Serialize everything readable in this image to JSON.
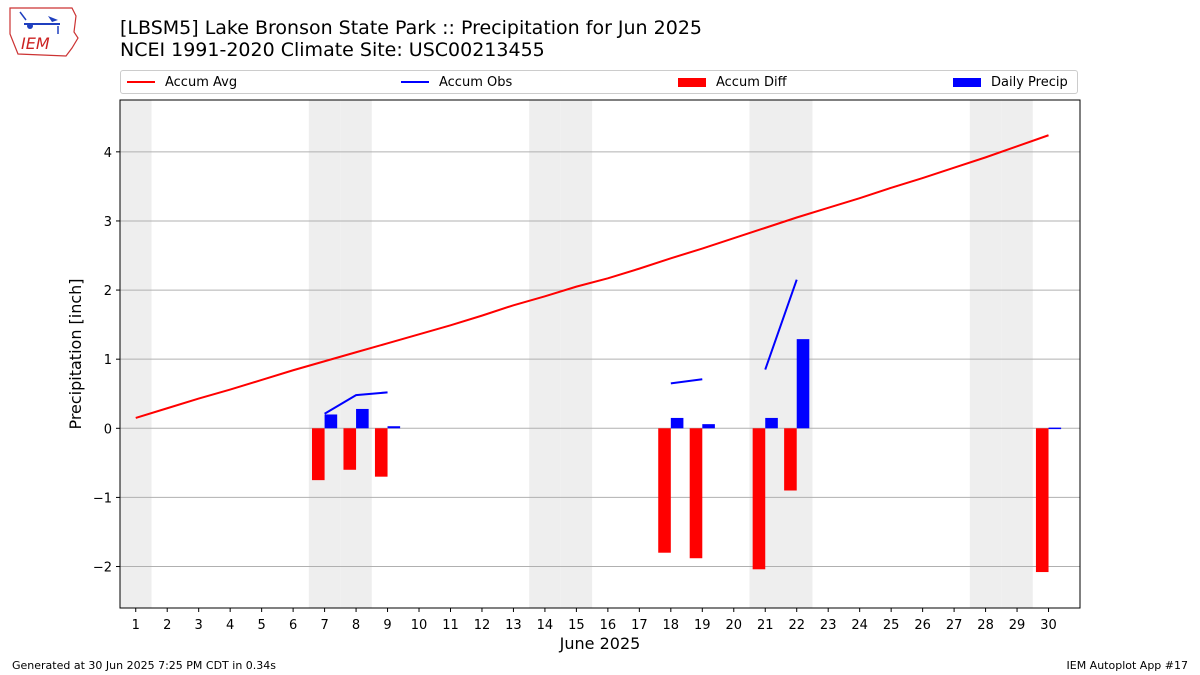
{
  "header": {
    "title_line1": "[LBSM5] Lake Bronson State Park :: Precipitation for Jun 2025",
    "title_line2": "NCEI 1991-2020 Climate Site: USC00213455",
    "logo_text": "IEM"
  },
  "legend": {
    "accum_avg": "Accum Avg",
    "accum_obs": "Accum Obs",
    "accum_diff": "Accum Diff",
    "daily_precip": "Daily Precip"
  },
  "footer": {
    "generated": "Generated at 30 Jun 2025 7:25 PM CDT in 0.34s",
    "app": "IEM Autoplot App #17"
  },
  "colors": {
    "accum_avg": "#ff0000",
    "accum_obs": "#0000ff",
    "accum_diff": "#ff0000",
    "daily_precip": "#0000ff",
    "weekend_shade": "#eeeeee",
    "grid": "#b0b0b0"
  },
  "chart_data": {
    "type": "bar",
    "xlabel": "June 2025",
    "ylabel": "Precipitation [inch]",
    "xlim": [
      0.5,
      31.0
    ],
    "ylim": [
      -2.6,
      4.75
    ],
    "yticks": [
      -2,
      -1,
      0,
      1,
      2,
      3,
      4
    ],
    "ytick_labels": [
      "−2",
      "−1",
      "0",
      "1",
      "2",
      "3",
      "4"
    ],
    "days": [
      1,
      2,
      3,
      4,
      5,
      6,
      7,
      8,
      9,
      10,
      11,
      12,
      13,
      14,
      15,
      16,
      17,
      18,
      19,
      20,
      21,
      22,
      23,
      24,
      25,
      26,
      27,
      28,
      29,
      30
    ],
    "weekend_days": [
      1,
      7,
      8,
      14,
      15,
      21,
      22,
      28,
      29
    ],
    "grid": "horizontal",
    "legend_position": "top",
    "series": [
      {
        "name": "Accum Avg",
        "kind": "line",
        "x": [
          1,
          2,
          3,
          4,
          5,
          6,
          7,
          8,
          9,
          10,
          11,
          12,
          13,
          14,
          15,
          16,
          17,
          18,
          19,
          20,
          21,
          22,
          23,
          24,
          25,
          26,
          27,
          28,
          29,
          30
        ],
        "values": [
          0.15,
          0.29,
          0.43,
          0.56,
          0.7,
          0.84,
          0.97,
          1.1,
          1.23,
          1.36,
          1.49,
          1.63,
          1.78,
          1.91,
          2.05,
          2.17,
          2.31,
          2.46,
          2.6,
          2.75,
          2.9,
          3.05,
          3.19,
          3.33,
          3.48,
          3.62,
          3.77,
          3.92,
          4.08,
          4.24
        ]
      },
      {
        "name": "Accum Obs",
        "kind": "line",
        "segments": [
          {
            "x": [
              7,
              8,
              9
            ],
            "values": [
              0.21,
              0.48,
              0.52
            ]
          },
          {
            "x": [
              18,
              19
            ],
            "values": [
              0.65,
              0.71
            ]
          },
          {
            "x": [
              21,
              22
            ],
            "values": [
              0.85,
              2.15
            ]
          }
        ]
      },
      {
        "name": "Accum Diff",
        "kind": "bar",
        "x": [
          7,
          8,
          9,
          18,
          19,
          21,
          22,
          30
        ],
        "values": [
          -0.75,
          -0.6,
          -0.7,
          -1.8,
          -1.88,
          -2.04,
          -0.9,
          -2.08
        ]
      },
      {
        "name": "Daily Precip",
        "kind": "bar",
        "x": [
          7,
          8,
          9,
          18,
          19,
          21,
          22,
          30
        ],
        "values": [
          0.2,
          0.28,
          0.03,
          0.15,
          0.06,
          0.15,
          1.29,
          0.01
        ]
      }
    ]
  }
}
